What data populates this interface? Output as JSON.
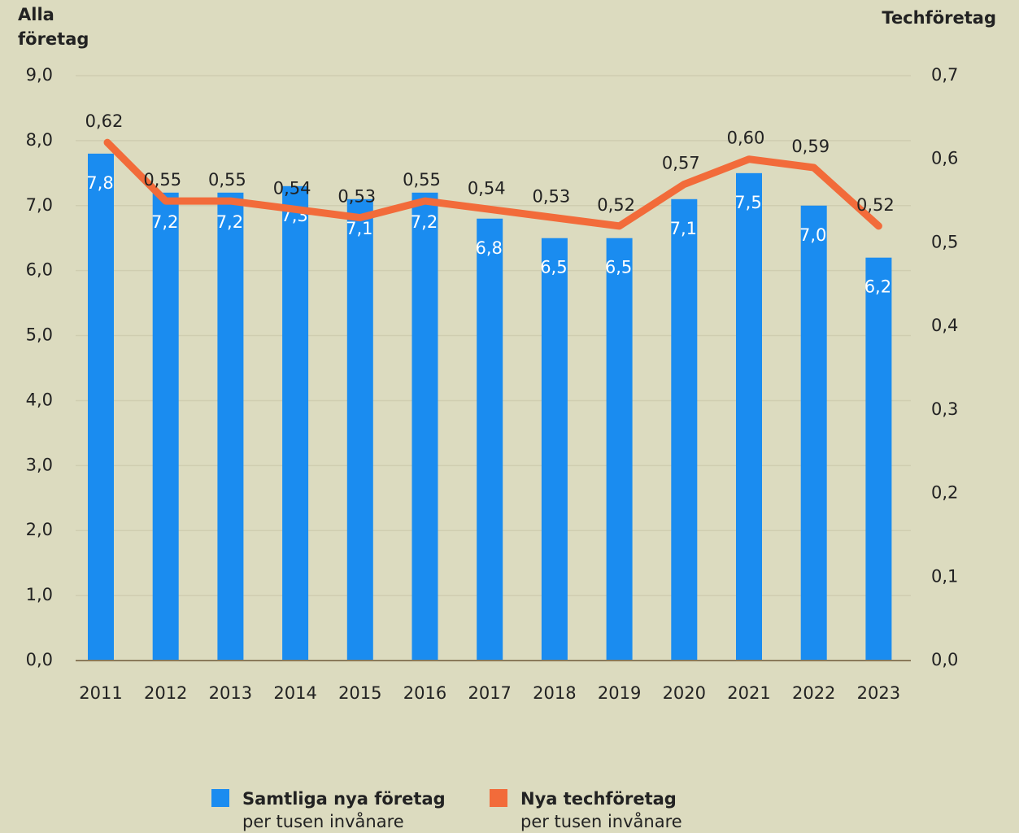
{
  "chart_data": {
    "type": "bar_line",
    "y_label": "Alla företag",
    "y2_label": "Techföretag",
    "categories": [
      "2011",
      "2012",
      "2013",
      "2014",
      "2015",
      "2016",
      "2017",
      "2018",
      "2019",
      "2020",
      "2021",
      "2022",
      "2023"
    ],
    "series": [
      {
        "name": "Samtliga nya företag",
        "unit": "per tusen invånare",
        "type": "bar",
        "color": "#1a8cf0",
        "values": [
          7.8,
          7.2,
          7.2,
          7.3,
          7.1,
          7.2,
          6.8,
          6.5,
          6.5,
          7.1,
          7.5,
          7.0,
          6.2
        ],
        "value_labels": [
          "7,8",
          "7,2",
          "7,2",
          "7,3",
          "7,1",
          "7,2",
          "6,8",
          "6,5",
          "6,5",
          "7,1",
          "7,5",
          "7,0",
          "6,2"
        ]
      },
      {
        "name": "Nya techföretag",
        "unit": "per tusen invånare",
        "type": "line",
        "axis": "y2",
        "color": "#f26b3a",
        "values": [
          0.62,
          0.55,
          0.55,
          0.54,
          0.53,
          0.55,
          0.54,
          0.53,
          0.52,
          0.57,
          0.6,
          0.59,
          0.52
        ],
        "value_labels": [
          "0,62",
          "0,55",
          "0,55",
          "0,54",
          "0,53",
          "0,55",
          "0,54",
          "0,53",
          "0,52",
          "0,57",
          "0,60",
          "0,59",
          "0,52"
        ]
      }
    ],
    "ylim": [
      0,
      9
    ],
    "yticks": [
      {
        "value": 0,
        "label": "0,0"
      },
      {
        "value": 1,
        "label": "1,0"
      },
      {
        "value": 2,
        "label": "2,0"
      },
      {
        "value": 3,
        "label": "3,0"
      },
      {
        "value": 4,
        "label": "4,0"
      },
      {
        "value": 5,
        "label": "5,0"
      },
      {
        "value": 6,
        "label": "6,0"
      },
      {
        "value": 7,
        "label": "7,0"
      },
      {
        "value": 8,
        "label": "8,0"
      },
      {
        "value": 9,
        "label": "9,0"
      }
    ],
    "y2lim": [
      0,
      0.7
    ],
    "y2ticks": [
      {
        "value": 0,
        "label": "0,0"
      },
      {
        "value": 0.1,
        "label": "0,1"
      },
      {
        "value": 0.2,
        "label": "0,2"
      },
      {
        "value": 0.3,
        "label": "0,3"
      },
      {
        "value": 0.4,
        "label": "0,4"
      },
      {
        "value": 0.5,
        "label": "0,5"
      },
      {
        "value": 0.6,
        "label": "0,6"
      },
      {
        "value": 0.7,
        "label": "0,7"
      }
    ],
    "grid": true
  }
}
